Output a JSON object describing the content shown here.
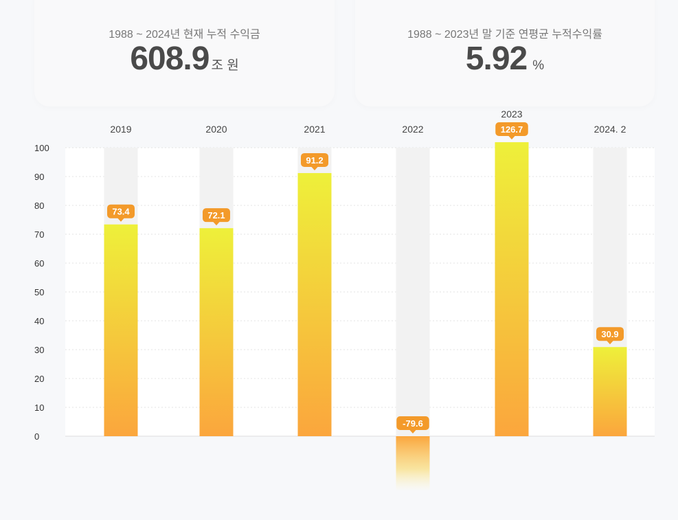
{
  "summary": [
    {
      "caption": "1988 ~ 2024년 현재 누적 수익금",
      "value": "608.9",
      "unit": "조 원"
    },
    {
      "caption": "1988 ~ 2023년 말 기준 연평균 누적수익률",
      "value": "5.92",
      "unit": "%"
    }
  ],
  "chart_data": {
    "type": "bar",
    "categories": [
      "2019",
      "2020",
      "2021",
      "2022",
      "2023",
      "2024. 2"
    ],
    "values": [
      73.4,
      72.1,
      91.2,
      -79.6,
      126.7,
      30.9
    ],
    "value_labels": [
      "73.4",
      "72.1",
      "91.2",
      "-79.6",
      "126.7",
      "30.9"
    ],
    "ylim": [
      0,
      100
    ],
    "yticks": [
      0,
      10,
      20,
      30,
      40,
      50,
      60,
      70,
      80,
      90,
      100
    ],
    "grid": true,
    "colors": {
      "bar_top": "#eef03a",
      "bar_bottom": "#fba63d",
      "tag": "#f39a2a",
      "track": "#f2f2f2"
    }
  }
}
